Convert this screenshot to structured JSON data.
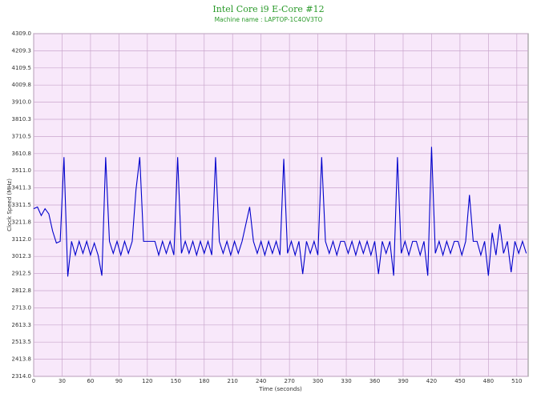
{
  "chart_data": {
    "type": "line",
    "title": "Intel Core i9 E-Core #12",
    "subtitle": "Machine name : LAPTOP-1C4OV3TO",
    "x_label": "Time (seconds)",
    "y_label": "Clock Speed (MHz)",
    "xlim": [
      0,
      522
    ],
    "xticks": [
      0,
      30,
      60,
      90,
      120,
      150,
      180,
      210,
      240,
      270,
      300,
      330,
      360,
      390,
      420,
      450,
      480,
      510
    ],
    "ylim": [
      2314.0,
      4309.0
    ],
    "yticks": [
      {
        "value": 2314.0,
        "label": "2314.0"
      },
      2413.8,
      2513.5,
      2613.3,
      {
        "value": 2713.0,
        "label": "2713.0"
      },
      2812.8,
      2912.5,
      3012.3,
      {
        "value": 3112.0,
        "label": "3112.0"
      },
      3211.8,
      3311.5,
      3411.3,
      {
        "value": 3511.0,
        "label": "3511.0"
      },
      3610.8,
      3710.5,
      3810.3,
      {
        "value": 3910.0,
        "label": "3910.0"
      },
      4009.8,
      4109.5,
      4209.3,
      {
        "value": 4309.0,
        "label": "4309.0"
      }
    ],
    "grid": true,
    "x": [
      0,
      4,
      8,
      12,
      16,
      20,
      24,
      28,
      32,
      36,
      40,
      44,
      48,
      52,
      56,
      60,
      64,
      68,
      72,
      76,
      80,
      84,
      88,
      92,
      96,
      100,
      104,
      108,
      112,
      116,
      120,
      124,
      128,
      132,
      136,
      140,
      144,
      148,
      152,
      156,
      160,
      164,
      168,
      172,
      176,
      180,
      184,
      188,
      192,
      196,
      200,
      204,
      208,
      212,
      216,
      220,
      224,
      228,
      232,
      236,
      240,
      244,
      248,
      252,
      256,
      260,
      264,
      268,
      272,
      276,
      280,
      284,
      288,
      292,
      296,
      300,
      304,
      308,
      312,
      316,
      320,
      324,
      328,
      332,
      336,
      340,
      344,
      348,
      352,
      356,
      360,
      364,
      368,
      372,
      376,
      380,
      384,
      388,
      392,
      396,
      400,
      404,
      408,
      412,
      416,
      420,
      424,
      428,
      432,
      436,
      440,
      444,
      448,
      452,
      456,
      460,
      464,
      468,
      472,
      476,
      480,
      484,
      488,
      492,
      496,
      500,
      504,
      508,
      512,
      516,
      520
    ],
    "series": [
      {
        "name": "E-Core #12",
        "color": "#0000cc",
        "values": [
          3290,
          3300,
          3250,
          3290,
          3260,
          3160,
          3090,
          3100,
          3590,
          2895,
          3100,
          3020,
          3100,
          3030,
          3100,
          3020,
          3090,
          3020,
          2900,
          3590,
          3100,
          3030,
          3100,
          3020,
          3100,
          3030,
          3100,
          3400,
          3590,
          3100,
          3100,
          3100,
          3100,
          3020,
          3100,
          3030,
          3100,
          3020,
          3590,
          3030,
          3100,
          3030,
          3100,
          3020,
          3100,
          3030,
          3100,
          3020,
          3590,
          3100,
          3030,
          3100,
          3020,
          3100,
          3030,
          3100,
          3200,
          3300,
          3100,
          3030,
          3100,
          3020,
          3100,
          3030,
          3100,
          3020,
          3580,
          3030,
          3100,
          3020,
          3100,
          2910,
          3100,
          3030,
          3100,
          3020,
          3590,
          3100,
          3030,
          3100,
          3020,
          3100,
          3100,
          3030,
          3100,
          3020,
          3100,
          3030,
          3100,
          3020,
          3100,
          2910,
          3100,
          3030,
          3100,
          2900,
          3590,
          3030,
          3100,
          3020,
          3100,
          3100,
          3020,
          3100,
          2900,
          3650,
          3030,
          3100,
          3020,
          3100,
          3030,
          3100,
          3100,
          3020,
          3100,
          3370,
          3100,
          3100,
          3020,
          3100,
          2900,
          3150,
          3020,
          3200,
          3030,
          3100,
          2920,
          3100,
          3030,
          3100,
          3030
        ]
      }
    ]
  }
}
